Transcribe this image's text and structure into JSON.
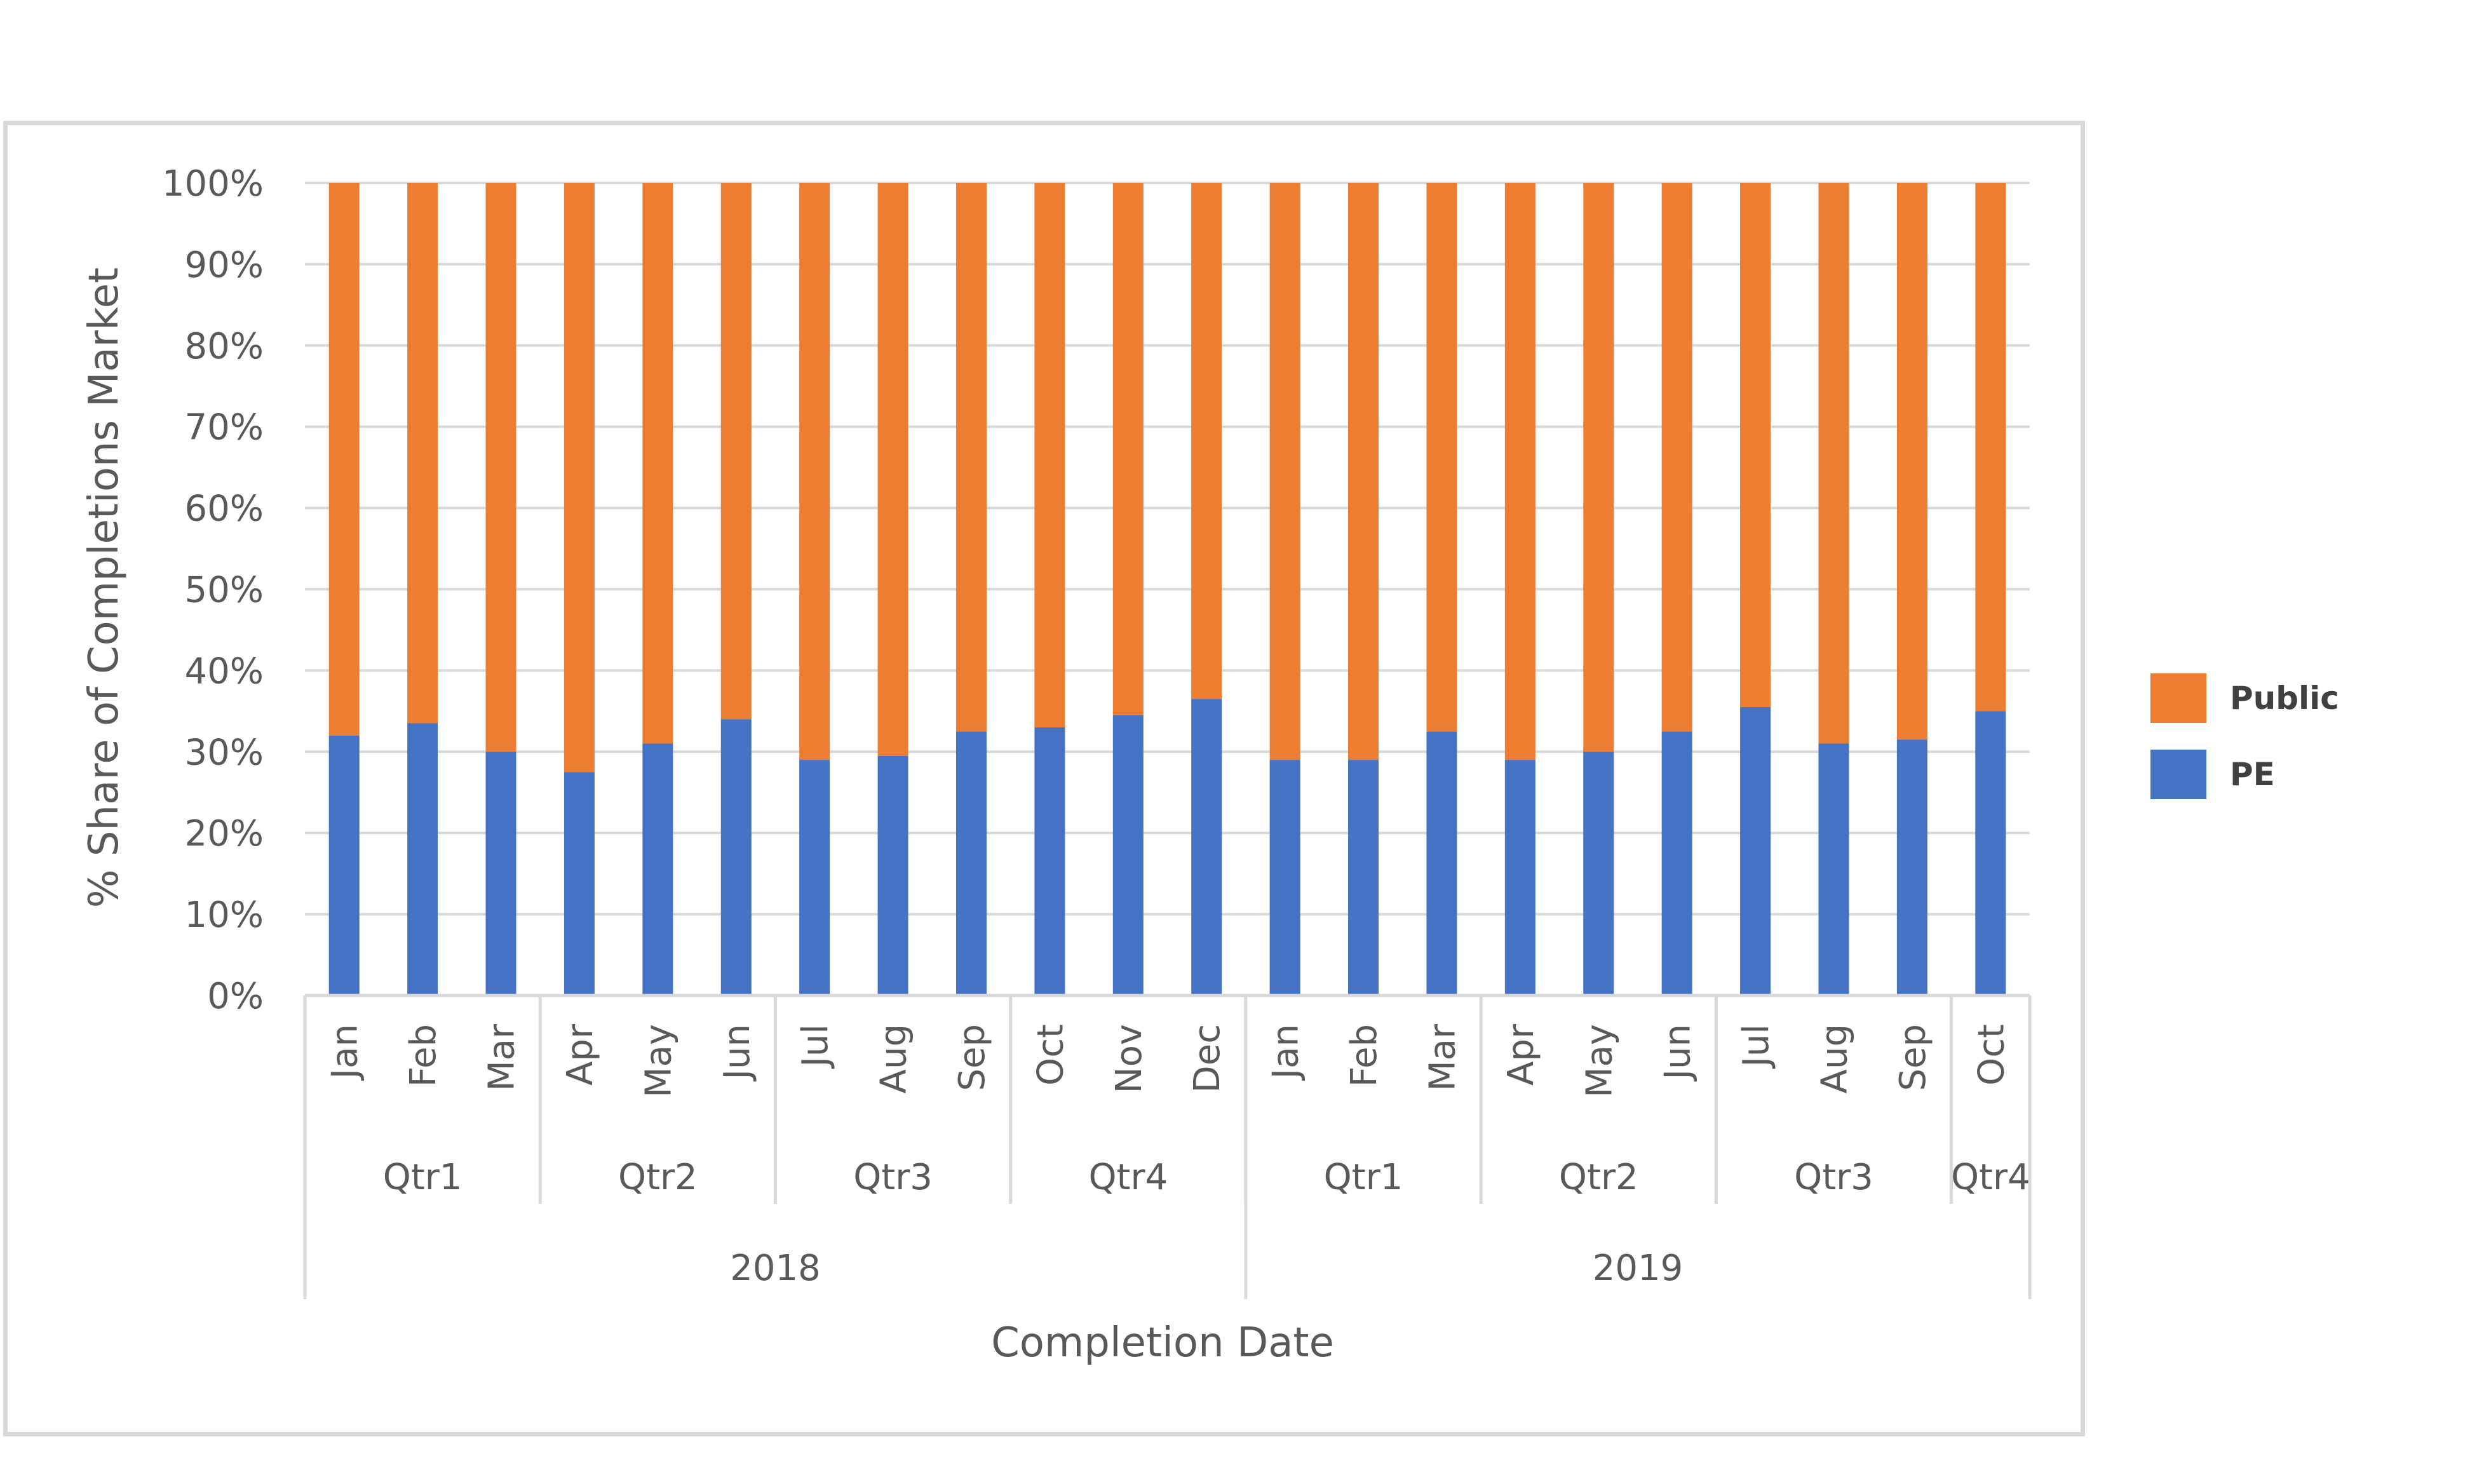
{
  "chart_data": {
    "type": "bar",
    "stacked": true,
    "percent": true,
    "ylabel": "% Share of Completions Market",
    "xlabel": "Completion Date",
    "ylim": [
      0,
      100
    ],
    "yticks": [
      "0%",
      "10%",
      "20%",
      "30%",
      "40%",
      "50%",
      "60%",
      "70%",
      "80%",
      "90%",
      "100%"
    ],
    "grid": true,
    "legend_position": "right",
    "categories": [
      "Jan",
      "Feb",
      "Mar",
      "Apr",
      "May",
      "Jun",
      "Jul",
      "Aug",
      "Sep",
      "Oct",
      "Nov",
      "Dec",
      "Jan",
      "Feb",
      "Mar",
      "Apr",
      "May",
      "Jun",
      "Jul",
      "Aug",
      "Sep",
      "Oct"
    ],
    "quarters": [
      {
        "label": "Qtr1",
        "start": 0,
        "count": 3
      },
      {
        "label": "Qtr2",
        "start": 3,
        "count": 3
      },
      {
        "label": "Qtr3",
        "start": 6,
        "count": 3
      },
      {
        "label": "Qtr4",
        "start": 9,
        "count": 3
      },
      {
        "label": "Qtr1",
        "start": 12,
        "count": 3
      },
      {
        "label": "Qtr2",
        "start": 15,
        "count": 3
      },
      {
        "label": "Qtr3",
        "start": 18,
        "count": 3
      },
      {
        "label": "Qtr4",
        "start": 21,
        "count": 1
      }
    ],
    "years": [
      {
        "label": "2018",
        "start": 0,
        "count": 12
      },
      {
        "label": "2019",
        "start": 12,
        "count": 10
      }
    ],
    "series": [
      {
        "name": "PE",
        "color": "#4472c4",
        "values": [
          32,
          33.5,
          30,
          27.5,
          31,
          34,
          29,
          29.5,
          32.5,
          33,
          34.5,
          36.5,
          29,
          29,
          32.5,
          29,
          30,
          32.5,
          35.5,
          31,
          31.5,
          35
        ]
      },
      {
        "name": "Public",
        "color": "#ed7d31",
        "values": [
          68,
          66.5,
          70,
          72.5,
          69,
          66,
          71,
          70.5,
          67.5,
          67,
          65.5,
          63.5,
          71,
          71,
          67.5,
          71,
          70,
          67.5,
          64.5,
          69,
          68.5,
          65
        ]
      }
    ],
    "legend": [
      "Public",
      "PE"
    ],
    "gridline_color": "#d9d9d9"
  }
}
